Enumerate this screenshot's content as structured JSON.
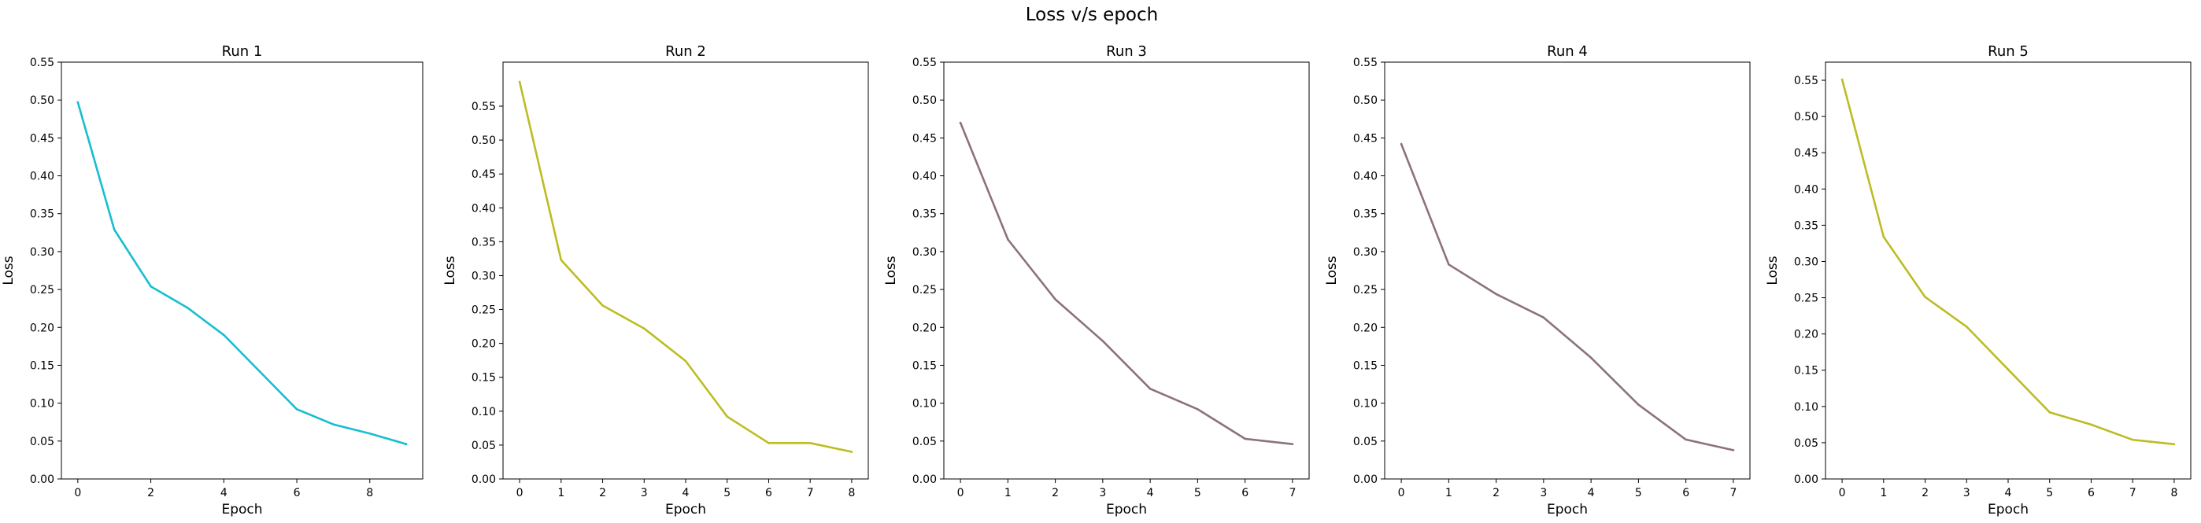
{
  "figure": {
    "title": "Loss v/s epoch"
  },
  "chart_data": [
    {
      "type": "line",
      "title": "Run 1",
      "xlabel": "Epoch",
      "ylabel": "Loss",
      "color": "#17becf",
      "xlim": [
        -0.45,
        9.45
      ],
      "ylim": [
        0,
        0.55
      ],
      "xticks": [
        0,
        2,
        4,
        6,
        8
      ],
      "yticks": [
        0.0,
        0.05,
        0.1,
        0.15,
        0.2,
        0.25,
        0.3,
        0.35,
        0.4,
        0.45,
        0.5,
        0.55
      ],
      "x": [
        0,
        1,
        2,
        3,
        4,
        5,
        6,
        7,
        8,
        9
      ],
      "values": [
        0.497,
        0.329,
        0.254,
        0.226,
        0.19,
        0.141,
        0.092,
        0.072,
        0.06,
        0.046
      ]
    },
    {
      "type": "line",
      "title": "Run 2",
      "xlabel": "Epoch",
      "ylabel": "Loss",
      "color": "#bcbd22",
      "xlim": [
        -0.4,
        8.4
      ],
      "ylim": [
        0,
        0.615
      ],
      "xticks": [
        0,
        1,
        2,
        3,
        4,
        5,
        6,
        7,
        8
      ],
      "yticks": [
        0.0,
        0.05,
        0.1,
        0.15,
        0.2,
        0.25,
        0.3,
        0.35,
        0.4,
        0.45,
        0.5,
        0.55
      ],
      "x": [
        0,
        1,
        2,
        3,
        4,
        5,
        6,
        7,
        8
      ],
      "values": [
        0.586,
        0.323,
        0.256,
        0.222,
        0.174,
        0.092,
        0.053,
        0.053,
        0.04
      ]
    },
    {
      "type": "line",
      "title": "Run 3",
      "xlabel": "Epoch",
      "ylabel": "Loss",
      "color": "#8c7378",
      "xlim": [
        -0.35,
        7.35
      ],
      "ylim": [
        0,
        0.55
      ],
      "xticks": [
        0,
        1,
        2,
        3,
        4,
        5,
        6,
        7
      ],
      "yticks": [
        0.0,
        0.05,
        0.1,
        0.15,
        0.2,
        0.25,
        0.3,
        0.35,
        0.4,
        0.45,
        0.5,
        0.55
      ],
      "x": [
        0,
        1,
        2,
        3,
        4,
        5,
        6,
        7
      ],
      "values": [
        0.47,
        0.316,
        0.237,
        0.182,
        0.119,
        0.092,
        0.053,
        0.046
      ]
    },
    {
      "type": "line",
      "title": "Run 4",
      "xlabel": "Epoch",
      "ylabel": "Loss",
      "color": "#8c7378",
      "xlim": [
        -0.35,
        7.35
      ],
      "ylim": [
        0,
        0.55
      ],
      "xticks": [
        0,
        1,
        2,
        3,
        4,
        5,
        6,
        7
      ],
      "yticks": [
        0.0,
        0.05,
        0.1,
        0.15,
        0.2,
        0.25,
        0.3,
        0.35,
        0.4,
        0.45,
        0.5,
        0.55
      ],
      "x": [
        0,
        1,
        2,
        3,
        4,
        5,
        6,
        7
      ],
      "values": [
        0.442,
        0.283,
        0.244,
        0.213,
        0.16,
        0.098,
        0.052,
        0.038
      ]
    },
    {
      "type": "line",
      "title": "Run 5",
      "xlabel": "Epoch",
      "ylabel": "Loss",
      "color": "#bcbd22",
      "xlim": [
        -0.4,
        8.4
      ],
      "ylim": [
        0,
        0.575
      ],
      "xticks": [
        0,
        1,
        2,
        3,
        4,
        5,
        6,
        7,
        8
      ],
      "yticks": [
        0.0,
        0.05,
        0.1,
        0.15,
        0.2,
        0.25,
        0.3,
        0.35,
        0.4,
        0.45,
        0.5,
        0.55
      ],
      "x": [
        0,
        1,
        2,
        3,
        4,
        5,
        6,
        7,
        8
      ],
      "values": [
        0.551,
        0.334,
        0.251,
        0.21,
        0.151,
        0.092,
        0.075,
        0.054,
        0.048
      ]
    }
  ]
}
